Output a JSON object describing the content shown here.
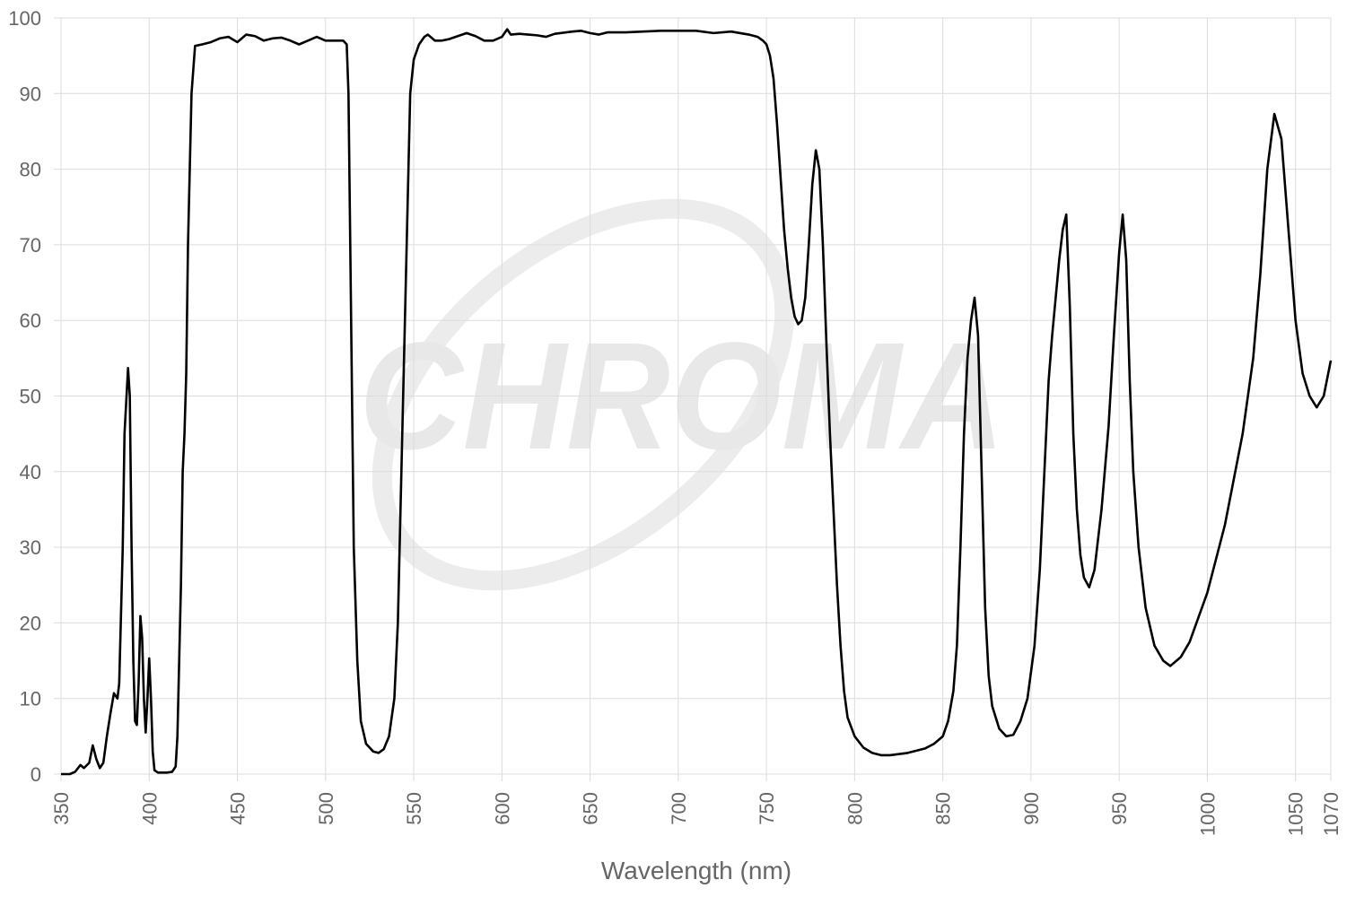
{
  "chart_data": {
    "type": "line",
    "watermark": "CHROMA",
    "xlabel": "Wavelength (nm)",
    "color": "#000000",
    "grid": true,
    "xlim": [
      350,
      1070
    ],
    "ylim": [
      0,
      100
    ],
    "xticks": [
      350,
      400,
      450,
      500,
      550,
      600,
      650,
      700,
      750,
      800,
      850,
      900,
      950,
      1000,
      1050,
      1070
    ],
    "yticks": [
      0,
      10,
      20,
      30,
      40,
      50,
      60,
      70,
      80,
      90,
      100
    ],
    "x": [
      350,
      355,
      358,
      361,
      363,
      366,
      368,
      370,
      372,
      374,
      376,
      378,
      380,
      382,
      383,
      385,
      386,
      388,
      389,
      390,
      391,
      392,
      393,
      394,
      395,
      396,
      397,
      398,
      399,
      400,
      401,
      402,
      403,
      405,
      410,
      413,
      415,
      416,
      418,
      419,
      420,
      421,
      422,
      424,
      426,
      430,
      435,
      440,
      445,
      450,
      455,
      460,
      465,
      470,
      475,
      480,
      485,
      490,
      495,
      500,
      505,
      510,
      512,
      513,
      514,
      515,
      516,
      518,
      520,
      523,
      527,
      530,
      533,
      536,
      539,
      541,
      543,
      545,
      547,
      548,
      550,
      553,
      556,
      558,
      562,
      566,
      570,
      575,
      580,
      585,
      590,
      595,
      600,
      603,
      605,
      610,
      615,
      620,
      625,
      630,
      640,
      645,
      650,
      655,
      660,
      670,
      680,
      690,
      700,
      710,
      720,
      730,
      740,
      745,
      748,
      750,
      752,
      754,
      756,
      758,
      760,
      762,
      764,
      766,
      768,
      770,
      772,
      774,
      776,
      778,
      780,
      782,
      784,
      786,
      788,
      790,
      792,
      794,
      796,
      800,
      805,
      810,
      815,
      820,
      830,
      840,
      845,
      850,
      853,
      856,
      858,
      860,
      862,
      864,
      866,
      868,
      870,
      872,
      874,
      876,
      878,
      882,
      886,
      890,
      894,
      898,
      902,
      905,
      908,
      910,
      912,
      914,
      916,
      918,
      920,
      922,
      924,
      926,
      928,
      930,
      933,
      936,
      940,
      944,
      947,
      950,
      952,
      954,
      956,
      958,
      961,
      965,
      970,
      975,
      979,
      985,
      990,
      1000,
      1010,
      1020,
      1026,
      1030,
      1034,
      1038,
      1042,
      1046,
      1050,
      1054,
      1058,
      1062,
      1066,
      1070
    ],
    "values": [
      0,
      0,
      0.3,
      1.2,
      0.8,
      1.5,
      3.8,
      2,
      0.8,
      1.5,
      5,
      8,
      10.7,
      10,
      12,
      30,
      45,
      53.7,
      50,
      30,
      15,
      7,
      6.5,
      12,
      20.9,
      18,
      10,
      5.5,
      10,
      15.3,
      10,
      3,
      0.5,
      0.2,
      0.2,
      0.3,
      1,
      5,
      25,
      40,
      45,
      53,
      70,
      90,
      96.3,
      96.5,
      96.8,
      97.3,
      97.5,
      96.8,
      97.8,
      97.6,
      97,
      97.3,
      97.4,
      97,
      96.5,
      97,
      97.5,
      97,
      97,
      97,
      96.5,
      90,
      70,
      50,
      30,
      15,
      7,
      4,
      3,
      2.8,
      3.3,
      5,
      10,
      20,
      40,
      60,
      80,
      90,
      94.5,
      96.5,
      97.5,
      97.8,
      97,
      97,
      97.2,
      97.6,
      98,
      97.6,
      97,
      97,
      97.5,
      98.5,
      97.8,
      97.9,
      97.8,
      97.7,
      97.5,
      97.9,
      98.2,
      98.3,
      98,
      97.8,
      98.1,
      98.1,
      98.2,
      98.3,
      98.3,
      98.3,
      98,
      98.2,
      97.8,
      97.5,
      97,
      96.5,
      95,
      92,
      86,
      79,
      72,
      67,
      63,
      60.5,
      59.5,
      60,
      63,
      70,
      78,
      82.5,
      80,
      70,
      57,
      45,
      35,
      25,
      17,
      11,
      7.5,
      5,
      3.5,
      2.8,
      2.5,
      2.5,
      2.8,
      3.4,
      4,
      5,
      7,
      11,
      17,
      30,
      45,
      55,
      60,
      63,
      58,
      40,
      22,
      13,
      9,
      6,
      5,
      5.2,
      7,
      10,
      17,
      27,
      42,
      52,
      58,
      63,
      68,
      72,
      74,
      62,
      45,
      35,
      29,
      26,
      24.7,
      27,
      35,
      46,
      58,
      69,
      74,
      68,
      52,
      40,
      30,
      22,
      17,
      15,
      14.3,
      15.5,
      17.5,
      24,
      33,
      45,
      55,
      66,
      80,
      87.3,
      84,
      72,
      60,
      53,
      50,
      48.5,
      50,
      54.7
    ]
  }
}
